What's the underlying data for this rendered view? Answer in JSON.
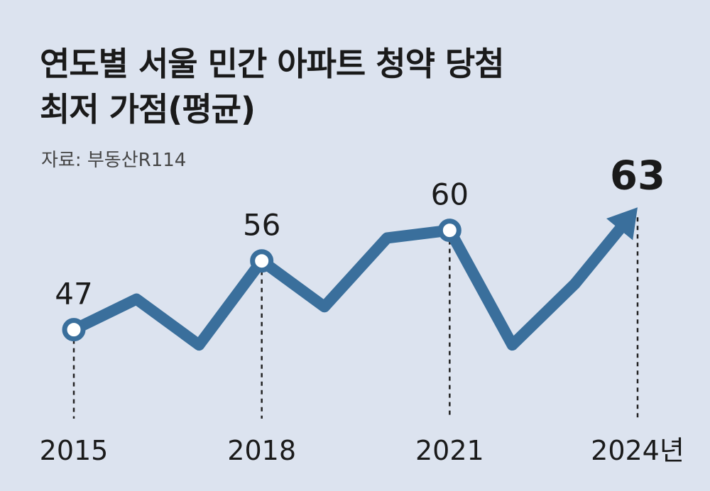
{
  "title_line1": "연도별 서울 민간 아파트 청약 당첨",
  "title_line2": "최저 가점(평균)",
  "source": "자료: 부동산R114",
  "chart_data": {
    "type": "line",
    "title": "연도별 서울 민간 아파트 청약 당첨 최저 가점(평균)",
    "source": "자료: 부동산R114",
    "x": [
      2015,
      2016,
      2017,
      2018,
      2019,
      2020,
      2021,
      2022,
      2023,
      2024
    ],
    "values": [
      47,
      51,
      45,
      56,
      50,
      59,
      60,
      45,
      53,
      63
    ],
    "ylim": [
      40,
      66
    ],
    "x_tick_labels": [
      "2015",
      "2018",
      "2021",
      "2024년"
    ],
    "labeled_points": [
      {
        "x": 2015,
        "label": "47"
      },
      {
        "x": 2018,
        "label": "56"
      },
      {
        "x": 2021,
        "label": "60"
      },
      {
        "x": 2024,
        "label": "63",
        "highlight": true
      }
    ],
    "line_color": "#3a6f9c",
    "background": "#dce3ef"
  }
}
